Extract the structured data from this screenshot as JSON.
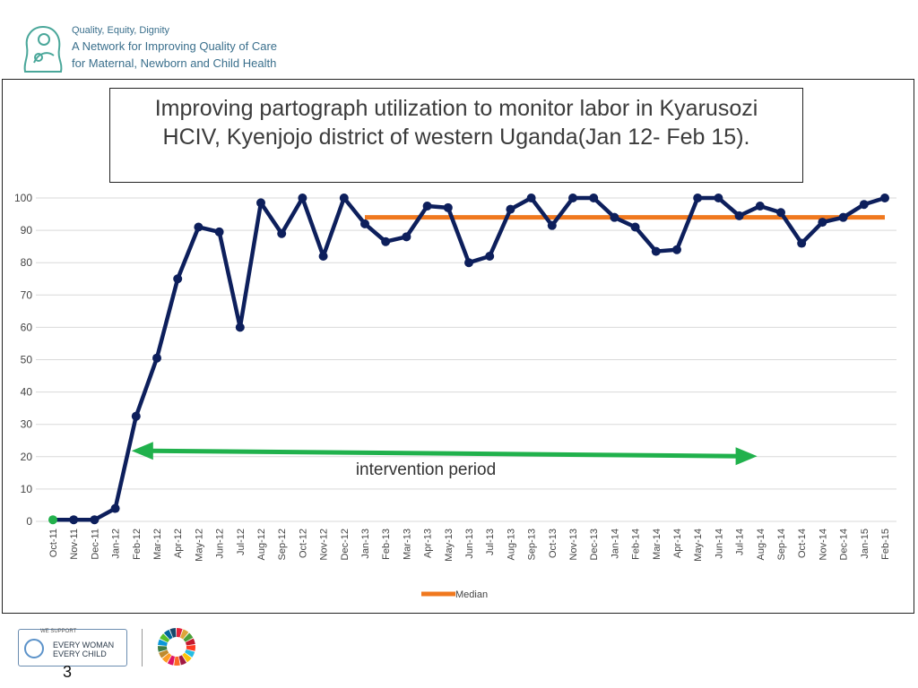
{
  "header": {
    "line1": "Quality, Equity, Dignity",
    "line2": "A Network for Improving Quality of Care",
    "line3": "for Maternal, Newborn and Child Health"
  },
  "footer": {
    "we_support": "WE SUPPORT",
    "ewec_line1": "EVERY WOMAN",
    "ewec_line2": "EVERY CHILD",
    "slide_number": "3"
  },
  "colors": {
    "series": "#0d1f5c",
    "median": "#f0781e",
    "arrow": "#20b14c",
    "grid": "#d9d9d9",
    "header_text": "#3a6f8c"
  },
  "chart_data": {
    "type": "line",
    "title_line1": "Improving partograph utilization  to monitor labor in Kyarusozi",
    "title_line2": "HCIV, Kyenjojo district of western Uganda(Jan 12- Feb 15).",
    "ylim": [
      0,
      100
    ],
    "yticks": [
      "0",
      "10",
      "20",
      "30",
      "40",
      "50",
      "60",
      "70",
      "80",
      "90",
      "100"
    ],
    "categories": [
      "Oct-11",
      "Nov-11",
      "Dec-11",
      "Jan-12",
      "Feb-12",
      "Mar-12",
      "Apr-12",
      "May-12",
      "Jun-12",
      "Jul-12",
      "Aug-12",
      "Sep-12",
      "Oct-12",
      "Nov-12",
      "Dec-12",
      "Jan-13",
      "Feb-13",
      "Mar-13",
      "Apr-13",
      "May-13",
      "Jun-13",
      "Jul-13",
      "Aug-13",
      "Sep-13",
      "Oct-13",
      "Nov-13",
      "Dec-13",
      "Jan-14",
      "Feb-14",
      "Mar-14",
      "Apr-14",
      "May-14",
      "Jun-14",
      "Jul-14",
      "Aug-14",
      "Sep-14",
      "Oct-14",
      "Nov-14",
      "Dec-14",
      "Jan-15",
      "Feb-15"
    ],
    "series": [
      {
        "values": [
          0.5,
          0.5,
          0.5,
          4,
          32.5,
          50.5,
          75,
          91,
          89.5,
          60,
          98.5,
          89,
          100,
          82,
          100,
          92,
          86.5,
          88,
          97.5,
          97,
          80,
          82,
          96.5,
          100,
          91.5,
          100,
          100,
          94,
          91,
          83.5,
          84,
          100,
          100,
          94.5,
          97.5,
          95.5,
          86,
          92.5,
          94,
          98,
          100
        ]
      }
    ],
    "median": {
      "name": "Median",
      "value": 94,
      "start": "Jan-13",
      "end": "Feb-15"
    },
    "annotation": {
      "text": "intervention period",
      "start": "Feb-12",
      "end": "Jul-14",
      "y": 21
    },
    "legend": {
      "entries": [
        "Median"
      ],
      "position": "bottom"
    }
  }
}
